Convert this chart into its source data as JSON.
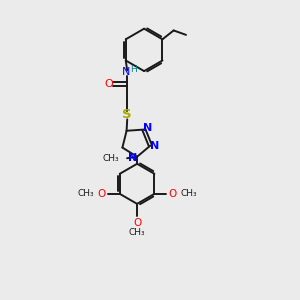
{
  "bg_color": "#ebebeb",
  "bond_color": "#1a1a1a",
  "atom_colors": {
    "N": "#0000ff",
    "O": "#ff0000",
    "S": "#aaaa00",
    "C": "#1a1a1a",
    "H": "#008080"
  },
  "figsize": [
    3.0,
    3.0
  ],
  "dpi": 100,
  "xlim": [
    0,
    10
  ],
  "ylim": [
    0,
    10
  ]
}
